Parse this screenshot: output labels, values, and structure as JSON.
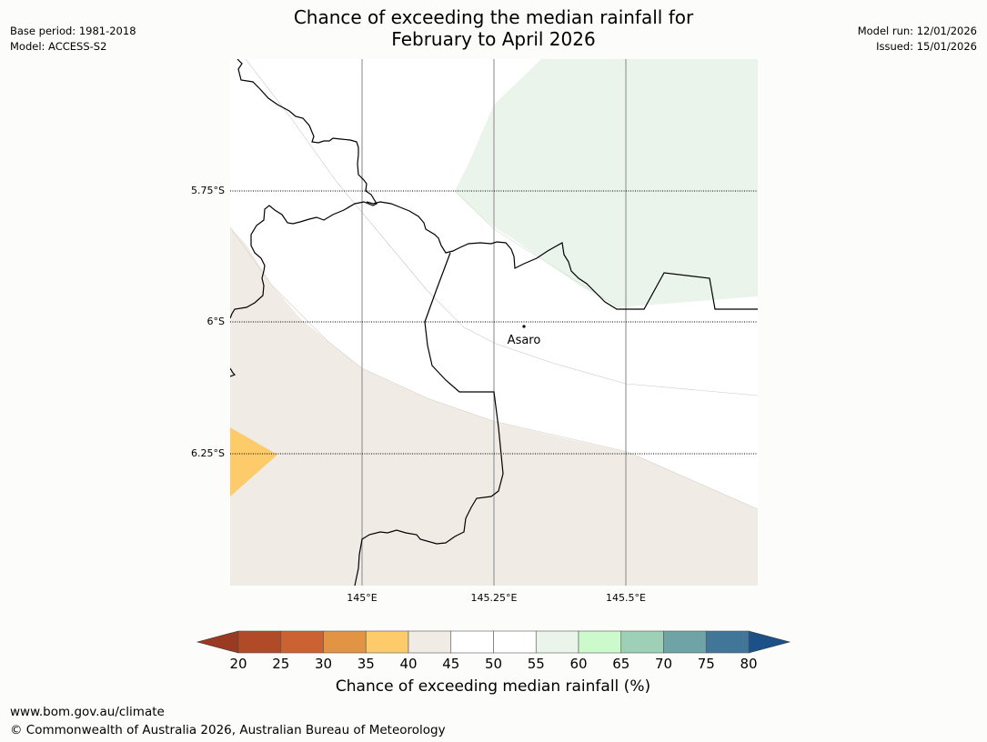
{
  "title": {
    "line1": "Chance of exceeding the median rainfall for",
    "line2": "February to April 2026"
  },
  "meta_left": {
    "base_period": "Base period: 1981-2018",
    "model": "Model: ACCESS-S2"
  },
  "meta_right": {
    "model_run": "Model run: 12/01/2026",
    "issued": "Issued: 15/01/2026"
  },
  "map": {
    "latitude_labels": [
      "5.75°S",
      "6°S",
      "6.25°S"
    ],
    "longitude_labels": [
      "145°E",
      "145.25°E",
      "145.5°E"
    ],
    "place": {
      "name": "Asaro"
    },
    "probability_zones": [
      {
        "range": "55-60",
        "color": "#ebf4eb"
      },
      {
        "range": "45-50",
        "color": "#ffffff"
      },
      {
        "range": "40-45",
        "color": "#f0ebe5"
      },
      {
        "range": "35-40",
        "color": "#fdcb69"
      }
    ]
  },
  "colorbar": {
    "title": "Chance of exceeding median rainfall (%)",
    "ticks": [
      "20",
      "25",
      "30",
      "35",
      "40",
      "45",
      "50",
      "55",
      "60",
      "65",
      "70",
      "75",
      "80"
    ],
    "under_color": "#9a3a22",
    "over_color": "#1c5188",
    "bins": [
      {
        "range": "20-25",
        "color": "#b04a27"
      },
      {
        "range": "25-30",
        "color": "#cc6232"
      },
      {
        "range": "30-35",
        "color": "#e29344"
      },
      {
        "range": "35-40",
        "color": "#fdcb69"
      },
      {
        "range": "40-45",
        "color": "#f0ebe5"
      },
      {
        "range": "45-50",
        "color": "#ffffff"
      },
      {
        "range": "50-55",
        "color": "#ffffff"
      },
      {
        "range": "55-60",
        "color": "#ebf4eb"
      },
      {
        "range": "60-65",
        "color": "#ccfacc"
      },
      {
        "range": "65-70",
        "color": "#9dd0b6"
      },
      {
        "range": "70-75",
        "color": "#6fa3a6"
      },
      {
        "range": "75-80",
        "color": "#417698"
      }
    ]
  },
  "footer": {
    "url": "www.bom.gov.au/climate",
    "copyright": "© Commonwealth of Australia 2026, Australian Bureau of Meteorology"
  }
}
